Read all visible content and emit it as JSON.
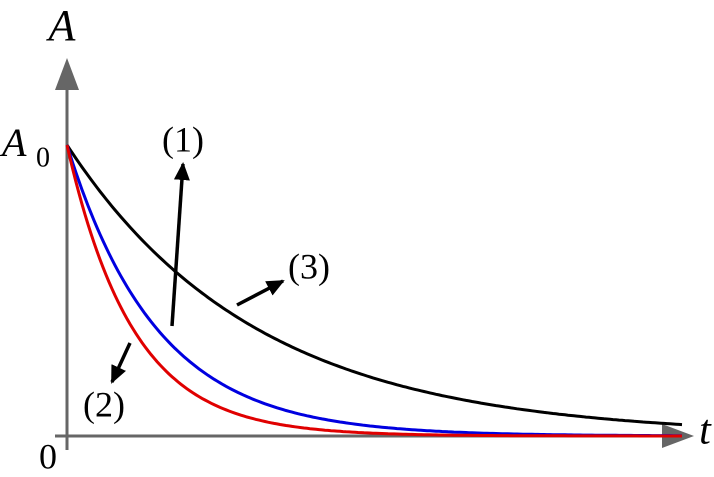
{
  "axes": {
    "y_label": "A",
    "x_label": "t",
    "origin": "0",
    "a0": {
      "base": "A",
      "sub": "0"
    }
  },
  "labels": [
    "(1)",
    "(2)",
    "(3)"
  ]
}
